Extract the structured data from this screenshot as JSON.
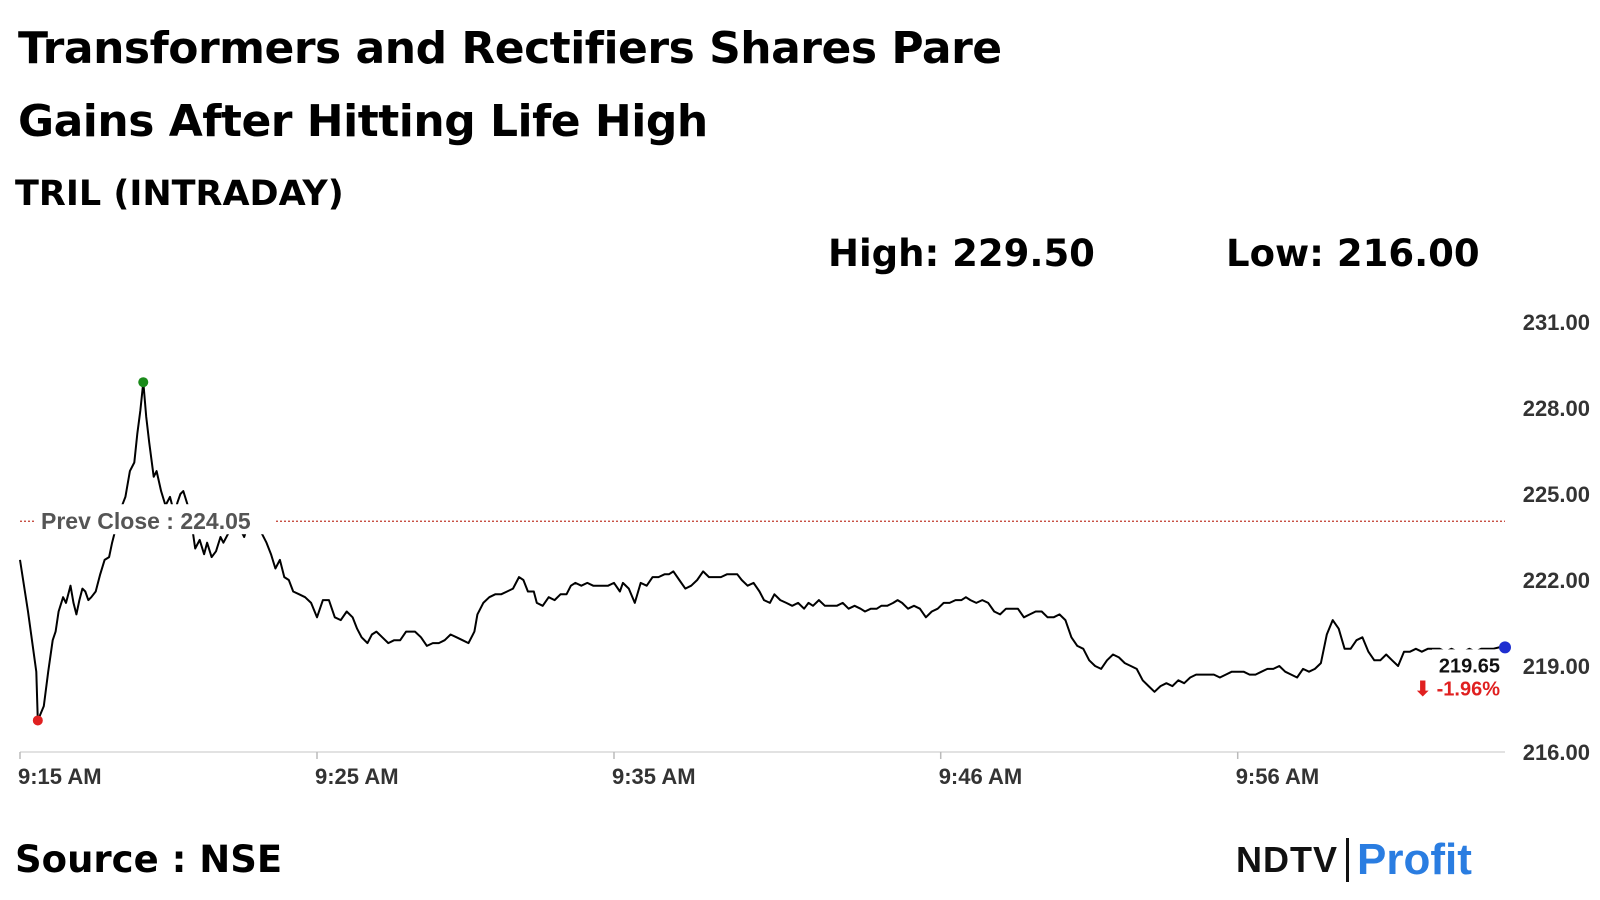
{
  "header": {
    "title": "Transformers and Rectifiers Shares Pare Gains After Hitting Life High",
    "subtitle": "TRIL (INTRADAY)",
    "high_text": "High: 229.50",
    "low_text": "Low: 216.00"
  },
  "footer": {
    "source": "Source : NSE",
    "logo_left": "NDTV",
    "logo_right": "Profit"
  },
  "colors": {
    "line": "#000000",
    "prev_close": "#c0392b",
    "high_marker": "#1a8a1a",
    "low_marker": "#e02020",
    "last_marker": "#1f2fd0",
    "change": "#e02020",
    "logo_profit": "#2a7de1"
  },
  "chart_data": {
    "type": "line",
    "x_label": "",
    "y_label": "",
    "ylim": [
      216,
      231
    ],
    "y_ticks": [
      "231.00",
      "228.00",
      "225.00",
      "222.00",
      "219.00",
      "216.00"
    ],
    "x_ticks": [
      "9:15 AM",
      "9:25 AM",
      "9:35 AM",
      "9:46 AM",
      "9:56 AM"
    ],
    "x_tick_minutes": [
      0,
      10,
      20,
      31,
      41
    ],
    "x_range_minutes": [
      0,
      50
    ],
    "prev_close": 224.05,
    "prev_close_label": "Prev Close : 224.05",
    "last_value_label": "219.65",
    "change_label": "⬇ -1.96%",
    "grid": false,
    "series": [
      {
        "values": [
          [
            0.0,
            222.7
          ],
          [
            0.27,
            220.9
          ],
          [
            0.55,
            218.8
          ],
          [
            0.6,
            217.1
          ],
          [
            0.8,
            217.6
          ],
          [
            0.95,
            218.8
          ],
          [
            1.1,
            219.9
          ],
          [
            1.2,
            220.2
          ],
          [
            1.3,
            220.9
          ],
          [
            1.45,
            221.4
          ],
          [
            1.55,
            221.2
          ],
          [
            1.7,
            221.8
          ],
          [
            1.8,
            221.2
          ],
          [
            1.9,
            220.8
          ],
          [
            2.0,
            221.3
          ],
          [
            2.1,
            221.7
          ],
          [
            2.2,
            221.6
          ],
          [
            2.3,
            221.3
          ],
          [
            2.4,
            221.4
          ],
          [
            2.55,
            221.6
          ],
          [
            2.7,
            222.2
          ],
          [
            2.85,
            222.7
          ],
          [
            3.0,
            222.8
          ],
          [
            3.1,
            223.3
          ],
          [
            3.25,
            223.9
          ],
          [
            3.4,
            224.5
          ],
          [
            3.55,
            224.9
          ],
          [
            3.7,
            225.8
          ],
          [
            3.85,
            226.1
          ],
          [
            3.95,
            227.1
          ],
          [
            4.05,
            227.9
          ],
          [
            4.15,
            228.9
          ],
          [
            4.25,
            227.7
          ],
          [
            4.35,
            226.8
          ],
          [
            4.5,
            225.6
          ],
          [
            4.6,
            225.8
          ],
          [
            4.75,
            225.1
          ],
          [
            4.9,
            224.6
          ],
          [
            5.05,
            224.9
          ],
          [
            5.2,
            224.3
          ],
          [
            5.3,
            224.7
          ],
          [
            5.4,
            225.0
          ],
          [
            5.5,
            225.1
          ],
          [
            5.65,
            224.6
          ],
          [
            5.8,
            223.8
          ],
          [
            5.9,
            223.1
          ],
          [
            6.05,
            223.4
          ],
          [
            6.2,
            222.9
          ],
          [
            6.3,
            223.3
          ],
          [
            6.45,
            222.8
          ],
          [
            6.6,
            223.0
          ],
          [
            6.75,
            223.5
          ],
          [
            6.85,
            223.3
          ],
          [
            7.0,
            223.6
          ],
          [
            7.1,
            223.9
          ],
          [
            7.25,
            224.0
          ],
          [
            7.4,
            223.8
          ],
          [
            7.55,
            223.5
          ],
          [
            7.7,
            224.0
          ],
          [
            7.85,
            223.8
          ],
          [
            8.0,
            224.0
          ],
          [
            8.15,
            223.6
          ],
          [
            8.3,
            223.3
          ],
          [
            8.45,
            222.9
          ],
          [
            8.6,
            222.4
          ],
          [
            8.75,
            222.7
          ],
          [
            8.9,
            222.1
          ],
          [
            9.05,
            222.0
          ],
          [
            9.2,
            221.6
          ],
          [
            9.4,
            221.5
          ],
          [
            9.6,
            221.4
          ],
          [
            9.8,
            221.2
          ],
          [
            10.0,
            220.7
          ],
          [
            10.2,
            221.3
          ],
          [
            10.4,
            221.3
          ],
          [
            10.6,
            220.7
          ],
          [
            10.8,
            220.6
          ],
          [
            11.0,
            220.9
          ],
          [
            11.2,
            220.7
          ],
          [
            11.35,
            220.3
          ],
          [
            11.5,
            220.0
          ],
          [
            11.7,
            219.8
          ],
          [
            11.85,
            220.1
          ],
          [
            12.0,
            220.2
          ],
          [
            12.2,
            220.0
          ],
          [
            12.4,
            219.8
          ],
          [
            12.6,
            219.9
          ],
          [
            12.8,
            219.9
          ],
          [
            13.0,
            220.2
          ],
          [
            13.15,
            220.2
          ],
          [
            13.3,
            220.2
          ],
          [
            13.5,
            220.0
          ],
          [
            13.7,
            219.7
          ],
          [
            13.9,
            219.8
          ],
          [
            14.1,
            219.8
          ],
          [
            14.3,
            219.9
          ],
          [
            14.5,
            220.1
          ],
          [
            14.7,
            220.0
          ],
          [
            14.9,
            219.9
          ],
          [
            15.1,
            219.8
          ],
          [
            15.3,
            220.2
          ],
          [
            15.4,
            220.8
          ],
          [
            15.6,
            221.2
          ],
          [
            15.8,
            221.4
          ],
          [
            16.0,
            221.5
          ],
          [
            16.2,
            221.5
          ],
          [
            16.4,
            221.6
          ],
          [
            16.6,
            221.7
          ],
          [
            16.8,
            222.1
          ],
          [
            16.95,
            222.0
          ],
          [
            17.1,
            221.6
          ],
          [
            17.3,
            221.6
          ],
          [
            17.4,
            221.2
          ],
          [
            17.6,
            221.1
          ],
          [
            17.8,
            221.4
          ],
          [
            18.0,
            221.3
          ],
          [
            18.2,
            221.5
          ],
          [
            18.4,
            221.5
          ],
          [
            18.55,
            221.8
          ],
          [
            18.7,
            221.9
          ],
          [
            18.9,
            221.8
          ],
          [
            19.1,
            221.9
          ],
          [
            19.3,
            221.8
          ],
          [
            19.45,
            221.8
          ],
          [
            19.6,
            221.8
          ],
          [
            19.8,
            221.8
          ],
          [
            20.0,
            221.9
          ],
          [
            20.2,
            221.6
          ],
          [
            20.3,
            221.9
          ],
          [
            20.5,
            221.7
          ],
          [
            20.7,
            221.2
          ],
          [
            20.9,
            221.9
          ],
          [
            21.1,
            221.8
          ],
          [
            21.3,
            222.1
          ],
          [
            21.5,
            222.1
          ],
          [
            21.7,
            222.2
          ],
          [
            21.85,
            222.2
          ],
          [
            22.0,
            222.3
          ],
          [
            22.2,
            222.0
          ],
          [
            22.4,
            221.7
          ],
          [
            22.6,
            221.8
          ],
          [
            22.8,
            222.0
          ],
          [
            23.0,
            222.3
          ],
          [
            23.2,
            222.1
          ],
          [
            23.4,
            222.1
          ],
          [
            23.6,
            222.1
          ],
          [
            23.8,
            222.2
          ],
          [
            24.0,
            222.2
          ],
          [
            24.15,
            222.2
          ],
          [
            24.3,
            222.0
          ],
          [
            24.5,
            221.8
          ],
          [
            24.7,
            221.9
          ],
          [
            24.9,
            221.6
          ],
          [
            25.05,
            221.3
          ],
          [
            25.25,
            221.2
          ],
          [
            25.4,
            221.5
          ],
          [
            25.6,
            221.3
          ],
          [
            25.8,
            221.2
          ],
          [
            26.0,
            221.1
          ],
          [
            26.2,
            221.2
          ],
          [
            26.4,
            221.0
          ],
          [
            26.55,
            221.2
          ],
          [
            26.7,
            221.1
          ],
          [
            26.9,
            221.3
          ],
          [
            27.1,
            221.1
          ],
          [
            27.3,
            221.1
          ],
          [
            27.5,
            221.1
          ],
          [
            27.7,
            221.2
          ],
          [
            27.9,
            221.0
          ],
          [
            28.1,
            221.1
          ],
          [
            28.3,
            221.0
          ],
          [
            28.45,
            220.9
          ],
          [
            28.65,
            221.0
          ],
          [
            28.85,
            221.0
          ],
          [
            29.0,
            221.1
          ],
          [
            29.2,
            221.1
          ],
          [
            29.4,
            221.2
          ],
          [
            29.55,
            221.3
          ],
          [
            29.7,
            221.2
          ],
          [
            29.9,
            221.0
          ],
          [
            30.1,
            221.1
          ],
          [
            30.3,
            221.0
          ],
          [
            30.5,
            220.7
          ],
          [
            30.7,
            220.9
          ],
          [
            30.9,
            221.0
          ],
          [
            31.1,
            221.2
          ],
          [
            31.3,
            221.2
          ],
          [
            31.5,
            221.3
          ],
          [
            31.7,
            221.3
          ],
          [
            31.85,
            221.4
          ],
          [
            32.0,
            221.3
          ],
          [
            32.2,
            221.2
          ],
          [
            32.4,
            221.3
          ],
          [
            32.6,
            221.2
          ],
          [
            32.8,
            220.9
          ],
          [
            33.0,
            220.8
          ],
          [
            33.2,
            221.0
          ],
          [
            33.4,
            221.0
          ],
          [
            33.6,
            221.0
          ],
          [
            33.8,
            220.7
          ],
          [
            34.0,
            220.8
          ],
          [
            34.2,
            220.9
          ],
          [
            34.4,
            220.9
          ],
          [
            34.6,
            220.7
          ],
          [
            34.8,
            220.7
          ],
          [
            35.0,
            220.8
          ],
          [
            35.2,
            220.6
          ],
          [
            35.4,
            220.0
          ],
          [
            35.6,
            219.7
          ],
          [
            35.8,
            219.6
          ],
          [
            36.0,
            219.2
          ],
          [
            36.2,
            219.0
          ],
          [
            36.4,
            218.9
          ],
          [
            36.6,
            219.2
          ],
          [
            36.8,
            219.4
          ],
          [
            37.0,
            219.3
          ],
          [
            37.2,
            219.1
          ],
          [
            37.4,
            219.0
          ],
          [
            37.6,
            218.9
          ],
          [
            37.8,
            218.5
          ],
          [
            38.0,
            218.3
          ],
          [
            38.2,
            218.1
          ],
          [
            38.4,
            218.3
          ],
          [
            38.6,
            218.4
          ],
          [
            38.8,
            218.3
          ],
          [
            39.0,
            218.5
          ],
          [
            39.2,
            218.4
          ],
          [
            39.4,
            218.6
          ],
          [
            39.6,
            218.7
          ],
          [
            39.8,
            218.7
          ],
          [
            40.0,
            218.7
          ],
          [
            40.2,
            218.7
          ],
          [
            40.4,
            218.6
          ],
          [
            40.6,
            218.7
          ],
          [
            40.8,
            218.8
          ],
          [
            41.0,
            218.8
          ],
          [
            41.2,
            218.8
          ],
          [
            41.4,
            218.7
          ],
          [
            41.6,
            218.7
          ],
          [
            41.8,
            218.8
          ],
          [
            42.0,
            218.9
          ],
          [
            42.2,
            218.9
          ],
          [
            42.4,
            219.0
          ],
          [
            42.6,
            218.8
          ],
          [
            42.8,
            218.7
          ],
          [
            43.0,
            218.6
          ],
          [
            43.2,
            218.9
          ],
          [
            43.4,
            218.8
          ],
          [
            43.6,
            218.9
          ],
          [
            43.8,
            219.1
          ],
          [
            44.0,
            220.1
          ],
          [
            44.2,
            220.6
          ],
          [
            44.4,
            220.3
          ],
          [
            44.6,
            219.6
          ],
          [
            44.8,
            219.6
          ],
          [
            45.0,
            219.9
          ],
          [
            45.2,
            220.0
          ],
          [
            45.4,
            219.5
          ],
          [
            45.6,
            219.2
          ],
          [
            45.8,
            219.2
          ],
          [
            46.0,
            219.4
          ],
          [
            46.2,
            219.2
          ],
          [
            46.4,
            219.0
          ],
          [
            46.6,
            219.5
          ],
          [
            46.8,
            219.5
          ],
          [
            47.0,
            219.6
          ],
          [
            47.2,
            219.5
          ],
          [
            47.4,
            219.6
          ],
          [
            47.6,
            219.6
          ],
          [
            47.8,
            219.6
          ],
          [
            48.0,
            219.5
          ],
          [
            48.2,
            219.6
          ],
          [
            48.4,
            219.5
          ],
          [
            48.6,
            219.5
          ],
          [
            48.8,
            219.6
          ],
          [
            49.0,
            219.5
          ],
          [
            49.2,
            219.6
          ],
          [
            49.4,
            219.6
          ],
          [
            49.6,
            219.6
          ],
          [
            49.8,
            219.65
          ],
          [
            50.0,
            219.65
          ]
        ]
      }
    ]
  }
}
